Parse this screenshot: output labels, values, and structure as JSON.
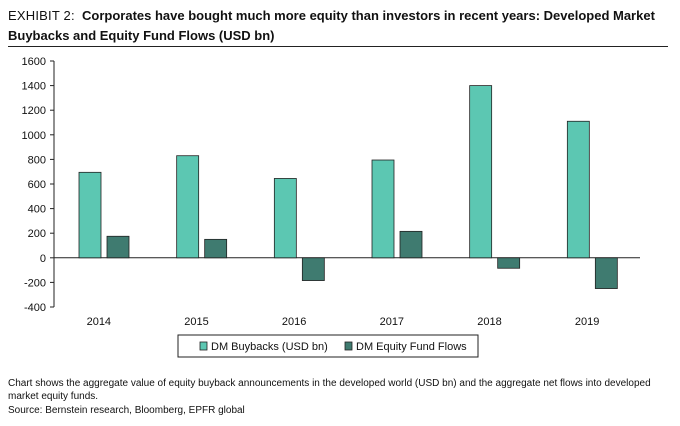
{
  "header": {
    "exhibit_label": "EXHIBIT 2:",
    "title": "Corporates have bought much more equity than investors in recent years: Developed Market Buybacks and Equity Fund Flows (USD bn)"
  },
  "footer": {
    "note": "Chart shows the aggregate value of equity buyback announcements in the developed world (USD bn) and the aggregate net flows into developed market equity funds.",
    "source": "Source: Bernstein research, Bloomberg, EPFR global"
  },
  "chart_data": {
    "type": "bar",
    "categories": [
      "2014",
      "2015",
      "2016",
      "2017",
      "2018",
      "2019"
    ],
    "series": [
      {
        "name": "DM Buybacks (USD bn)",
        "color": "#5cc7b2",
        "values": [
          695,
          830,
          645,
          795,
          1400,
          1110
        ]
      },
      {
        "name": "DM Equity Fund Flows",
        "color": "#3f7b70",
        "values": [
          175,
          150,
          -185,
          215,
          -85,
          -250
        ]
      }
    ],
    "ylim": [
      -400,
      1600
    ],
    "yticks": [
      -400,
      -200,
      0,
      200,
      400,
      600,
      800,
      1000,
      1200,
      1400,
      1600
    ],
    "grid": false,
    "legend_position": "bottom-center"
  }
}
